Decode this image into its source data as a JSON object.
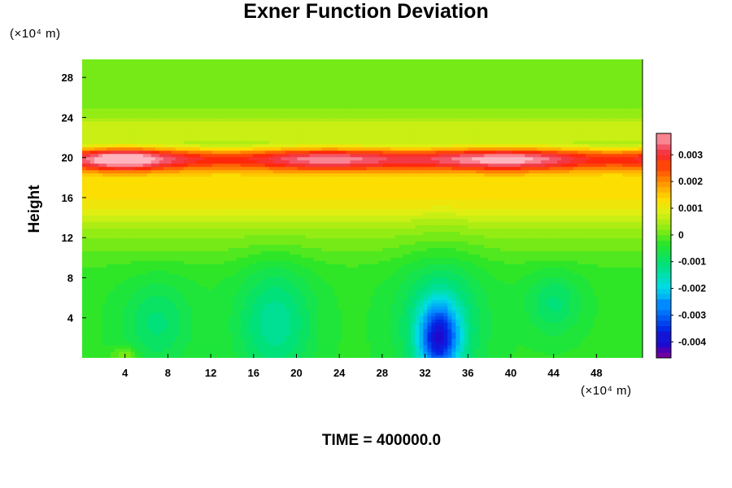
{
  "chart_data": {
    "type": "heatmap",
    "title": "Exner Function Deviation",
    "ylabel": "Height",
    "xlabel": "",
    "x_unit": "(×10⁴ m)",
    "y_unit": "(×10⁴ m)",
    "xlim": [
      0,
      52.3
    ],
    "ylim": [
      0,
      29.8
    ],
    "x_ticks": [
      4,
      8,
      12,
      16,
      20,
      24,
      28,
      32,
      36,
      40,
      44,
      48
    ],
    "y_ticks": [
      4,
      8,
      12,
      16,
      20,
      24,
      28
    ],
    "colorbar": {
      "range": [
        -0.0046,
        0.0038
      ],
      "ticks": [
        0.003,
        0.002,
        0.001,
        0,
        -0.001,
        -0.002,
        -0.003,
        -0.004
      ],
      "tick_labels": [
        "0.003",
        "0.002",
        "0.001",
        "0",
        "-0.001",
        "-0.002",
        "-0.003",
        "-0.004"
      ]
    },
    "features": {
      "band_height": 19.9,
      "band_value": 0.0031,
      "max": {
        "x": 3.7,
        "y": 19.9,
        "value": 0.0037
      },
      "min": {
        "x": 33.3,
        "y": 2.0,
        "value": -0.0042
      }
    },
    "footer": "TIME = 400000.0"
  }
}
